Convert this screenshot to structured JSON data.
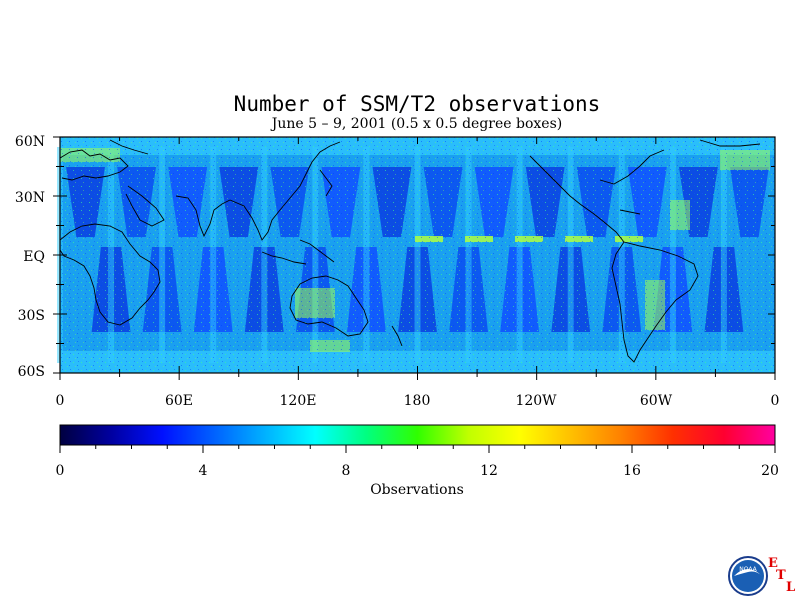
{
  "title": "Number of SSM/T2 observations",
  "subtitle": "June 5 – 9, 2001 (0.5 x 0.5 degree boxes)",
  "map": {
    "lat_ticks": [
      "60N",
      "30N",
      "EQ",
      "30S",
      "60S"
    ],
    "lon_ticks": [
      "0",
      "60E",
      "120E",
      "180",
      "120W",
      "60W",
      "0"
    ]
  },
  "colorbar": {
    "title": "Observations",
    "ticks": [
      "0",
      "4",
      "8",
      "12",
      "16",
      "20"
    ],
    "range": [
      0,
      20
    ],
    "colors": [
      "#000040",
      "#0000a0",
      "#0010ff",
      "#0060ff",
      "#00b0ff",
      "#00ffff",
      "#00ff80",
      "#30ff00",
      "#c0ff00",
      "#ffff00",
      "#ffc000",
      "#ff8000",
      "#ff3000",
      "#ff0030",
      "#ff00a0"
    ]
  },
  "logo": {
    "org": "NOAA",
    "letters": [
      "E",
      "T",
      "L"
    ]
  }
}
